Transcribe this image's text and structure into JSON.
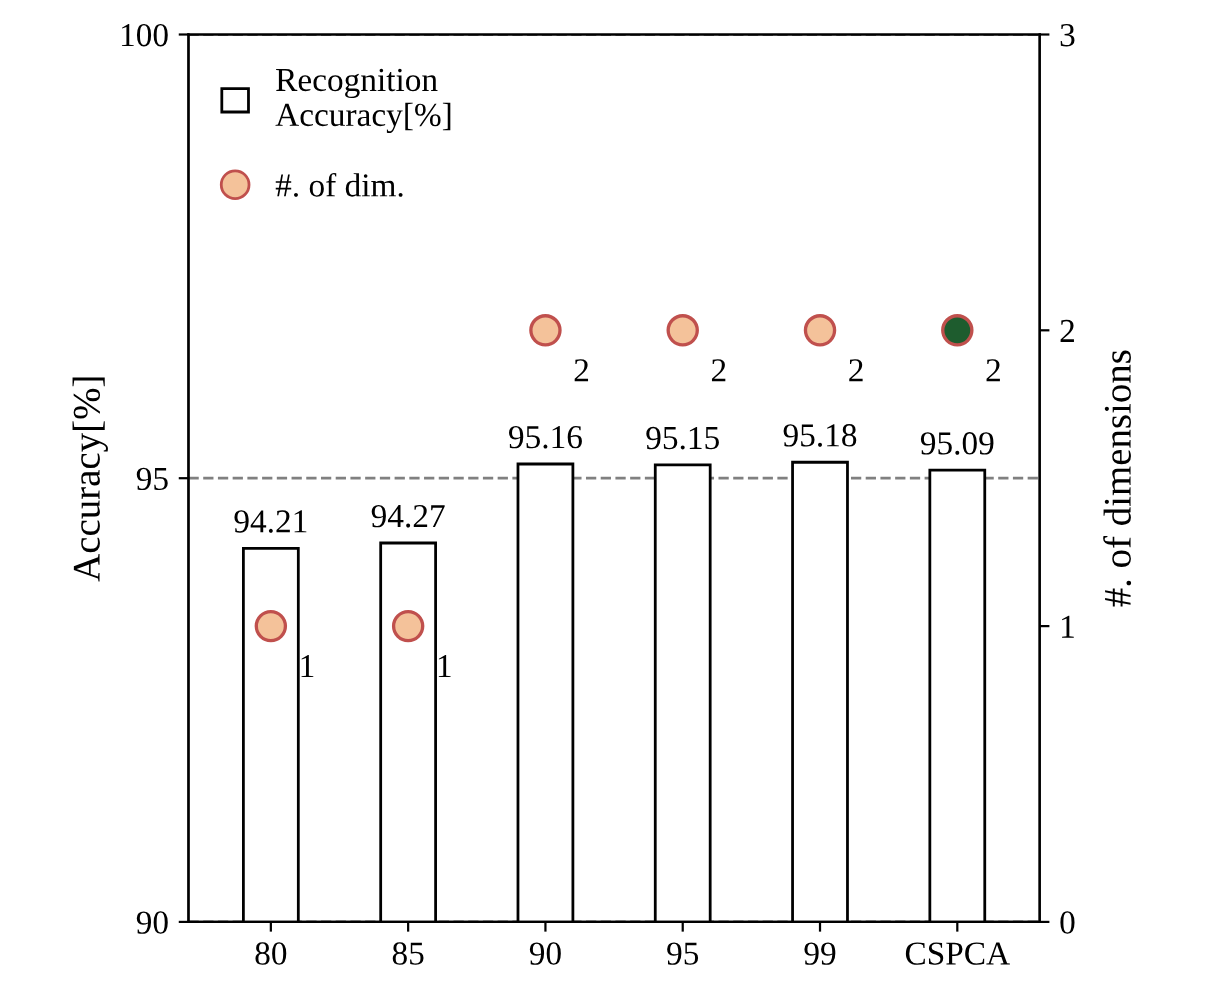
{
  "chart_data": {
    "type": "bar",
    "categories": [
      "80",
      "85",
      "90",
      "95",
      "99",
      "CSPCA"
    ],
    "ylabel": "Accuracy[%]",
    "y2label": "#. of dimensions",
    "ylim": [
      90,
      100
    ],
    "yticks": [
      90,
      95,
      100
    ],
    "y2lim": [
      0,
      3
    ],
    "y2ticks": [
      0,
      1,
      2,
      3
    ],
    "grid": "y",
    "legend": "top left",
    "data_labels": true,
    "series": [
      {
        "name": "Recognition\nAccuracy[%]",
        "color": "#ffffff",
        "values": [
          94.21,
          94.27,
          95.16,
          95.15,
          95.18,
          95.09
        ]
      },
      {
        "name": "#. of dim.",
        "type": "scatter",
        "axis": "y2",
        "marker": "circle",
        "color": "#f4c29a",
        "colors": [
          "#f4c29a",
          "#f4c29a",
          "#f4c29a",
          "#f4c29a",
          "#f4c29a",
          "#1e5c2e"
        ],
        "values": [
          1,
          1,
          2,
          2,
          2,
          2
        ]
      }
    ]
  }
}
